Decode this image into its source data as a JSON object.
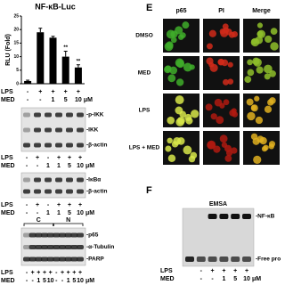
{
  "chart_data": {
    "type": "bar",
    "title": "NF-κB-Luc",
    "y_label": "RLU (Fold)",
    "categories": [
      null,
      null,
      null,
      null,
      null
    ],
    "values": [
      1,
      19,
      17,
      10,
      6
    ],
    "errors": [
      0.3,
      1.5,
      0.5,
      2,
      1
    ],
    "significance": [
      null,
      null,
      null,
      "**",
      "**"
    ],
    "color": "#000000",
    "ylim": [
      0,
      25
    ],
    "yticks": [
      0,
      5,
      10,
      15,
      20,
      25
    ],
    "rows": [
      {
        "label": "LPS",
        "lanes": [
          "-",
          "+",
          "+",
          "+",
          "+"
        ]
      },
      {
        "label": "MED",
        "lanes": [
          "-",
          "-",
          "1",
          "5",
          "10"
        ],
        "unit": "μM"
      }
    ]
  },
  "blots": [
    {
      "bands": [
        "-p-IKK",
        "-IKK",
        "-β-actin"
      ],
      "rows": [
        {
          "label": "LPS",
          "lanes": [
            "-",
            "+",
            "-",
            "+",
            "+",
            "+"
          ]
        },
        {
          "label": "MED",
          "lanes": [
            "-",
            "-",
            "1",
            "1",
            "5",
            "10"
          ],
          "unit": "μM"
        }
      ]
    },
    {
      "bands": [
        "-IκBα",
        "-β-actin"
      ],
      "rows": [
        {
          "label": "LPS",
          "lanes": [
            "-",
            "+",
            "-",
            "+",
            "+",
            "+"
          ]
        },
        {
          "label": "MED",
          "lanes": [
            "-",
            "-",
            "1",
            "1",
            "5",
            "10"
          ],
          "unit": "μM"
        }
      ]
    },
    {
      "groups": [
        "C",
        "N"
      ],
      "bands": [
        "-p65",
        "-α-Tubulin",
        "-PARP"
      ],
      "rows": [
        {
          "label": "LPS",
          "lanes": [
            "-",
            "+",
            "+",
            "+",
            "+",
            "-",
            "+",
            "+",
            "+",
            "+"
          ]
        },
        {
          "label": "MED",
          "lanes": [
            "-",
            "-",
            "1",
            "5",
            "10",
            "-",
            "-",
            "1",
            "5",
            "10"
          ],
          "unit": "μM"
        }
      ]
    }
  ],
  "imaging": {
    "panel": "E",
    "columns": [
      "p65",
      "PI",
      "Merge"
    ],
    "rows": [
      "DMSO",
      "MED",
      "LPS",
      "LPS + MED"
    ]
  },
  "emsa": {
    "panel": "F",
    "title": "EMSA",
    "bands": [
      "-NF-κB",
      "-Free pro"
    ],
    "rows": [
      {
        "label": "LPS",
        "lanes": [
          "-",
          "+",
          "+",
          "+",
          "+"
        ]
      },
      {
        "label": "MED",
        "lanes": [
          "-",
          "-",
          "1",
          "5",
          "10"
        ],
        "unit": "μM"
      }
    ]
  }
}
